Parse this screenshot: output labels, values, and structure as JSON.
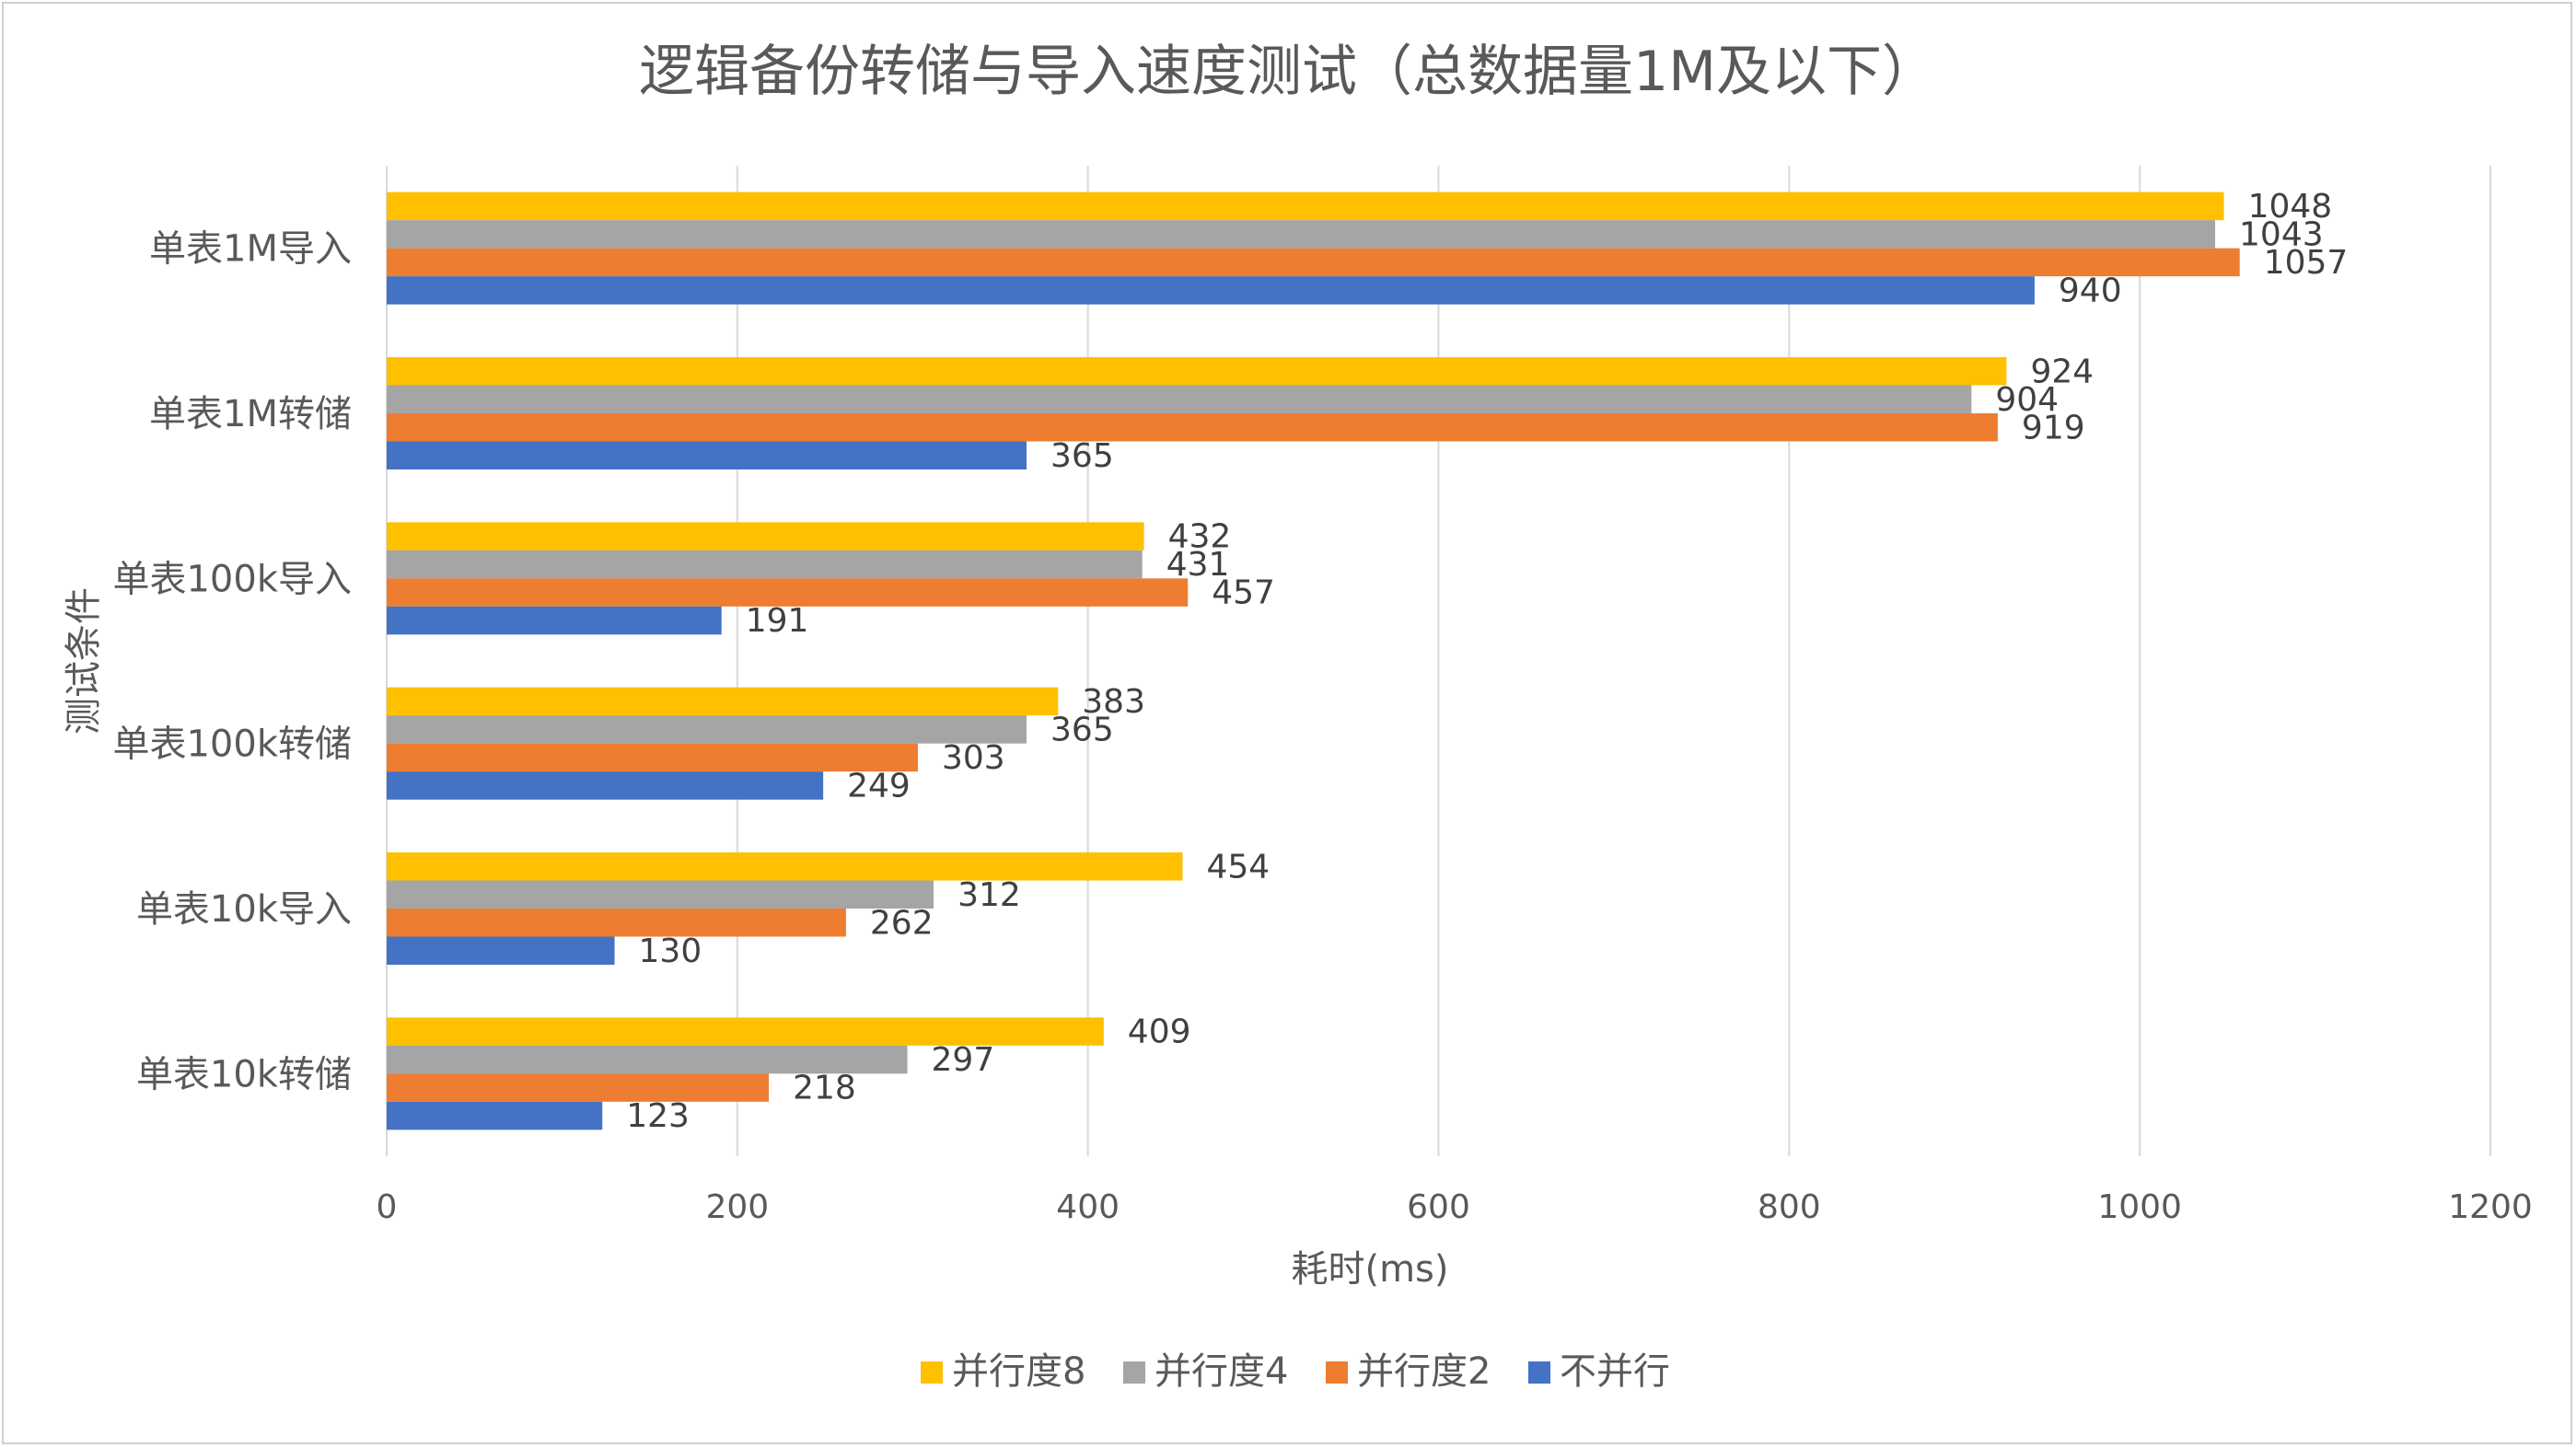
{
  "chart_data": {
    "type": "bar",
    "orientation": "horizontal",
    "title": "逻辑备份转储与导入速度测试（总数据量1M及以下）",
    "xlabel": "耗时(ms)",
    "ylabel": "测试条件",
    "xlim": [
      0,
      1200
    ],
    "xticks": [
      0,
      200,
      400,
      600,
      800,
      1000,
      1200
    ],
    "grid": true,
    "legend_position": "bottom",
    "categories": [
      "单表1M导入",
      "单表1M转储",
      "单表100k导入",
      "单表100k转储",
      "单表10k导入",
      "单表10k转储"
    ],
    "series": [
      {
        "name": "并行度8",
        "color": "#FFC000",
        "values": [
          1048,
          924,
          432,
          383,
          454,
          409
        ]
      },
      {
        "name": "并行度4",
        "color": "#A5A5A5",
        "values": [
          1043,
          904,
          431,
          365,
          312,
          297
        ]
      },
      {
        "name": "并行度2",
        "color": "#ED7D31",
        "values": [
          1057,
          919,
          457,
          303,
          262,
          218
        ]
      },
      {
        "name": "不并行",
        "color": "#4472C4",
        "values": [
          940,
          365,
          191,
          249,
          130,
          123
        ]
      }
    ],
    "legend_order": [
      "并行度8",
      "并行度4",
      "并行度2",
      "不并行"
    ]
  }
}
